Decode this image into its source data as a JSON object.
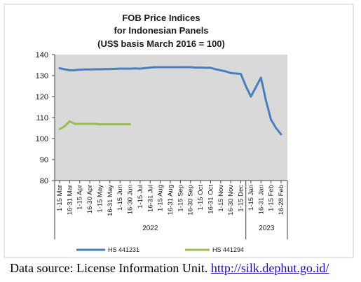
{
  "chart_data": {
    "type": "line",
    "title_lines": [
      "FOB Price Indices",
      "for Indonesian Panels",
      "(US$ basis March 2016 = 100)"
    ],
    "xlabel": "",
    "ylabel": "",
    "ylim": [
      80,
      140
    ],
    "yticks": [
      80,
      90,
      100,
      110,
      120,
      130,
      140
    ],
    "grid": false,
    "legend_position": "bottom",
    "categories": [
      "1-15 Mar",
      "16-31 Mar",
      "1-15 Apr",
      "16-30 Apr",
      "1-15 May",
      "16-31 May",
      "1-15 Jun",
      "16-30 Jun",
      "1-15 Jul",
      "16-31 Jul",
      "1-15 Aug",
      "16-31 Aug",
      "1-15 Sep",
      "16-30 Sep",
      "1-15 Oct",
      "16-31 Oct",
      "1-15 Nov",
      "16-30 Nov",
      "1-15 Dec",
      "1-15 Jan",
      "16-31 Jan",
      "1-15 Feb",
      "16-28 Feb"
    ],
    "year_groups": [
      {
        "label": "2022",
        "start": 0,
        "end": 18
      },
      {
        "label": "2023",
        "start": 19,
        "end": 22
      }
    ],
    "series": [
      {
        "name": "HS 441231",
        "color": "#4a7ebb",
        "x": [
          0,
          0.5,
          1,
          1.5,
          2,
          2.5,
          3,
          3.5,
          4,
          4.5,
          5,
          5.5,
          6,
          6.5,
          7,
          7.5,
          8,
          8.5,
          9,
          9.5,
          10,
          10.5,
          11,
          11.5,
          12,
          12.5,
          13,
          13.5,
          14,
          14.5,
          15,
          15.5,
          16,
          16.5,
          17,
          17.5,
          18,
          18.5,
          19,
          19.5,
          20,
          20.5,
          21,
          21.5,
          22
        ],
        "values": [
          133.5,
          133.0,
          132.5,
          132.6,
          132.8,
          132.9,
          132.9,
          133.0,
          133.0,
          133.1,
          133.1,
          133.2,
          133.3,
          133.3,
          133.3,
          133.4,
          133.3,
          133.6,
          133.8,
          134.0,
          134.0,
          134.0,
          134.0,
          134.0,
          134.0,
          134.0,
          134.0,
          133.8,
          133.8,
          133.7,
          133.7,
          133.0,
          132.5,
          132.0,
          131.2,
          131.0,
          130.8,
          125.0,
          120.0,
          124.5,
          129.0,
          118.0,
          109.0,
          105.0,
          102.0
        ]
      },
      {
        "name": "HS 441294",
        "color": "#9bbb59",
        "x": [
          0,
          0.5,
          1,
          1.5,
          2,
          2.5,
          3,
          3.5,
          4,
          4.5,
          5,
          5.5,
          6,
          6.5,
          7
        ],
        "values": [
          104.5,
          105.8,
          108.2,
          107.0,
          107.0,
          107.0,
          107.0,
          107.0,
          106.8,
          106.8,
          106.8,
          106.8,
          106.8,
          106.8,
          106.8
        ]
      }
    ]
  },
  "source": {
    "label": "Data source: License Information Unit. ",
    "link": "http://silk.dephut.go.id/"
  }
}
